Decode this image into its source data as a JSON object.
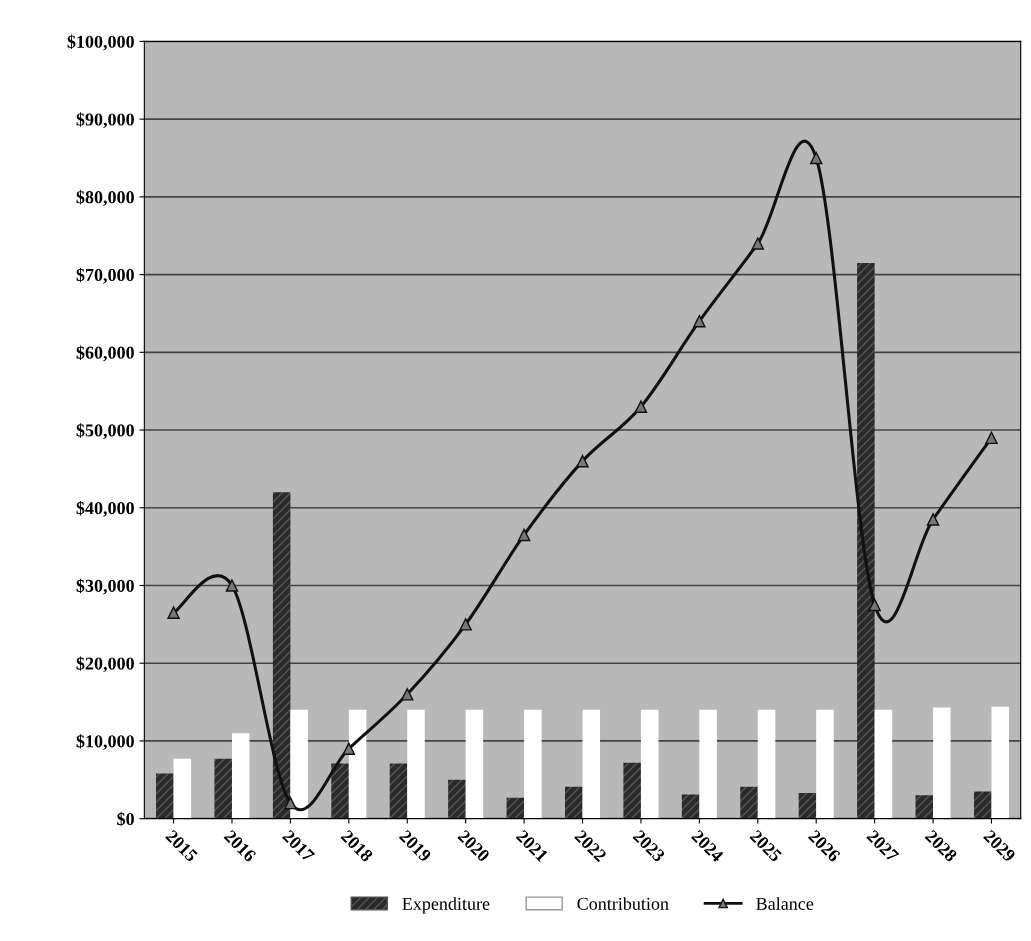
{
  "chart_data": {
    "type": "bar",
    "categories": [
      "2015",
      "2016",
      "2017",
      "2018",
      "2019",
      "2020",
      "2021",
      "2022",
      "2023",
      "2024",
      "2025",
      "2026",
      "2027",
      "2028",
      "2029"
    ],
    "series": [
      {
        "name": "Expenditure",
        "color": "#2a2a2a",
        "values": [
          5800,
          7700,
          42000,
          7100,
          7100,
          5000,
          2700,
          4100,
          7200,
          3100,
          4100,
          3300,
          71500,
          3000,
          3500
        ]
      },
      {
        "name": "Contribution",
        "color": "#ffffff",
        "values": [
          7700,
          11000,
          14000,
          14000,
          14000,
          14000,
          14000,
          14000,
          14000,
          14000,
          14000,
          14000,
          14000,
          14300,
          14400
        ]
      },
      {
        "name": "Balance",
        "type": "line",
        "color": "#111111",
        "marker": "triangle",
        "values": [
          26500,
          30000,
          2000,
          9000,
          16000,
          25000,
          36500,
          46000,
          53000,
          64000,
          74000,
          85000,
          27500,
          38500,
          49000
        ]
      }
    ],
    "ylim": [
      0,
      100000
    ],
    "yticks": [
      {
        "value": 0,
        "label": "$0"
      },
      {
        "value": 10000,
        "label": "$10,000"
      },
      {
        "value": 20000,
        "label": "$20,000"
      },
      {
        "value": 30000,
        "label": "$30,000"
      },
      {
        "value": 40000,
        "label": "$40,000"
      },
      {
        "value": 50000,
        "label": "$50,000"
      },
      {
        "value": 60000,
        "label": "$60,000"
      },
      {
        "value": 70000,
        "label": "$70,000"
      },
      {
        "value": 80000,
        "label": "$80,000"
      },
      {
        "value": 90000,
        "label": "$90,000"
      },
      {
        "value": 100000,
        "label": "$100,000"
      }
    ],
    "grid": "y",
    "legend": "bottom"
  }
}
